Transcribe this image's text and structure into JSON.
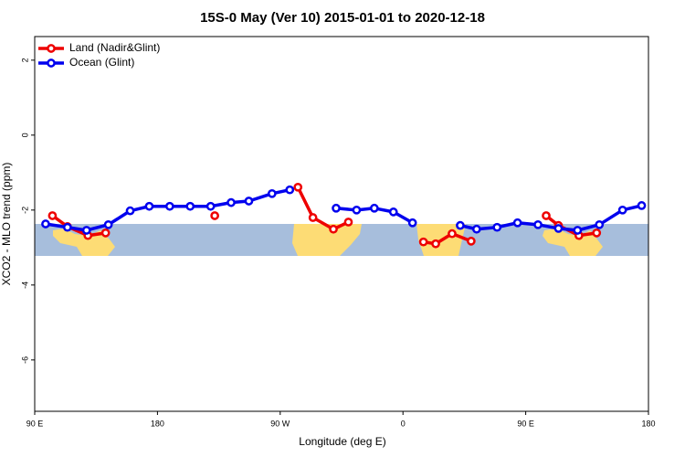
{
  "chart_data": {
    "type": "line",
    "title": "15S-0 May (Ver 10)   2015-01-01 to 2020-12-18",
    "x_label": "Longitude (deg E)",
    "y_label": "XCO2 - MLO trend (ppm)",
    "xlim": [
      90,
      540
    ],
    "xticks": [
      {
        "value": 90,
        "label": "90 E"
      },
      180,
      {
        "value": 270,
        "label": "90 W"
      },
      {
        "value": 360,
        "label": "0"
      },
      {
        "value": 450,
        "label": "90 E"
      },
      {
        "value": 540,
        "label": "180"
      }
    ],
    "ylim": [
      -7.37,
      2.63
    ],
    "yticks": [
      2,
      0,
      -2,
      -4,
      -6
    ],
    "legend": "top-left",
    "series": [
      {
        "name": "Land (Nadir&Glint)",
        "color": "#ee0000",
        "x": [
          103,
          114,
          129,
          142,
          180,
          222,
          260,
          283,
          294,
          309,
          320,
          350,
          375,
          384,
          396,
          410,
          440,
          465,
          474,
          489,
          502
        ],
        "values": [
          -2.15,
          -2.44,
          -2.68,
          -2.61,
          null,
          -2.15,
          null,
          -1.39,
          -2.2,
          -2.51,
          -2.32,
          null,
          -2.85,
          -2.9,
          -2.63,
          -2.83,
          null,
          -2.15,
          -2.41,
          -2.68,
          -2.61
        ]
      },
      {
        "name": "Ocean (Glint)",
        "color": "#0000ee",
        "x": [
          98,
          114,
          128,
          144,
          160,
          174,
          189,
          204,
          219,
          234,
          247,
          264,
          277,
          300,
          311,
          326,
          339,
          353,
          367,
          400,
          402,
          414,
          429,
          444,
          459,
          474,
          488,
          504,
          521,
          535
        ],
        "values": [
          -2.37,
          -2.46,
          -2.54,
          -2.39,
          -2.02,
          -1.9,
          -1.9,
          -1.9,
          -1.9,
          -1.8,
          -1.76,
          -1.56,
          -1.46,
          null,
          -1.95,
          -2.0,
          -1.95,
          -2.05,
          -2.34,
          null,
          -2.41,
          -2.51,
          -2.46,
          -2.34,
          -2.39,
          -2.49,
          -2.54,
          -2.39,
          -2.0,
          -1.88
        ]
      }
    ]
  }
}
